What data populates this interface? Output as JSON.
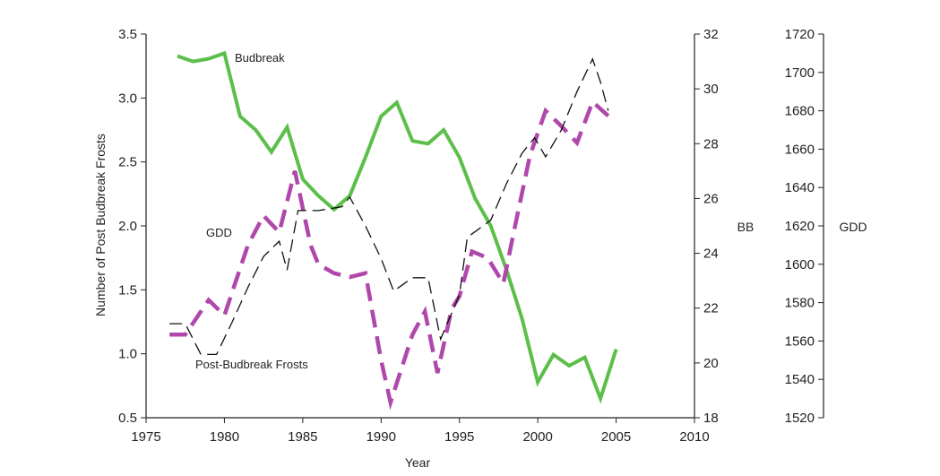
{
  "chart_data": {
    "type": "line",
    "xlabel": "Year",
    "xlim": [
      1975,
      2010
    ],
    "x_ticks": [
      1975,
      1980,
      1985,
      1990,
      1995,
      2000,
      2005,
      2010
    ],
    "axes": {
      "left": {
        "label": "Number of Post Budbreak Frosts",
        "lim": [
          0.5,
          3.5
        ],
        "ticks": [
          "0.5",
          "1.0",
          "1.5",
          "2.0",
          "2.5",
          "3.0",
          "3.5"
        ]
      },
      "right": {
        "label": "BB",
        "lim": [
          18,
          32
        ],
        "ticks": [
          "18",
          "20",
          "22",
          "24",
          "26",
          "28",
          "30",
          "32"
        ]
      },
      "far_right": {
        "label": "GDD",
        "lim": [
          1520,
          1720
        ],
        "ticks": [
          "1520",
          "1540",
          "1560",
          "1580",
          "1600",
          "1620",
          "1640",
          "1660",
          "1680",
          "1700",
          "1720"
        ]
      }
    },
    "annotations": {
      "budbreak": "Budbreak",
      "gdd": "GDD",
      "frosts": "Post-Budbreak Frosts"
    },
    "series": [
      {
        "name": "Budbreak",
        "axis": "right",
        "color": "#5cbf4a",
        "style": "solid",
        "points": [
          [
            1977,
            31.2
          ],
          [
            1978,
            31.0
          ],
          [
            1979,
            31.1
          ],
          [
            1980,
            31.3
          ],
          [
            1981,
            29.0
          ],
          [
            1982,
            28.5
          ],
          [
            1983,
            27.7
          ],
          [
            1984,
            28.6
          ],
          [
            1985,
            26.7
          ],
          [
            1986,
            26.1
          ],
          [
            1987,
            25.6
          ],
          [
            1988,
            26.1
          ],
          [
            1989,
            27.5
          ],
          [
            1990,
            29.0
          ],
          [
            1991,
            29.5
          ],
          [
            1992,
            28.1
          ],
          [
            1993,
            28.0
          ],
          [
            1994,
            28.5
          ],
          [
            1995,
            27.5
          ],
          [
            1996,
            26.0
          ],
          [
            1997,
            25.0
          ],
          [
            1998,
            23.4
          ],
          [
            1999,
            21.6
          ],
          [
            2000,
            19.3
          ],
          [
            2001,
            20.3
          ],
          [
            2002,
            19.9
          ],
          [
            2003,
            20.2
          ],
          [
            2004,
            18.7
          ],
          [
            2005,
            20.5
          ]
        ]
      },
      {
        "name": "GDD",
        "axis": "far_right",
        "color": "#111111",
        "style": "thin-dash",
        "points": [
          [
            1976.5,
            1569
          ],
          [
            1977.5,
            1569
          ],
          [
            1978.5,
            1553
          ],
          [
            1979.5,
            1553
          ],
          [
            1980.5,
            1570
          ],
          [
            1981.5,
            1588
          ],
          [
            1982.5,
            1604
          ],
          [
            1983.5,
            1612
          ],
          [
            1984,
            1597
          ],
          [
            1984.7,
            1628
          ],
          [
            1986,
            1628
          ],
          [
            1987.5,
            1630
          ],
          [
            1988,
            1635
          ],
          [
            1989,
            1620
          ],
          [
            1990,
            1603
          ],
          [
            1990.8,
            1586
          ],
          [
            1992,
            1593
          ],
          [
            1993,
            1593
          ],
          [
            1993.8,
            1561
          ],
          [
            1995,
            1584
          ],
          [
            1995.5,
            1614
          ],
          [
            1997,
            1623
          ],
          [
            1998,
            1642
          ],
          [
            1999,
            1658
          ],
          [
            1999.8,
            1666
          ],
          [
            2000.5,
            1656
          ],
          [
            2001.5,
            1670
          ],
          [
            2002.5,
            1690
          ],
          [
            2003.5,
            1707
          ],
          [
            2004,
            1695
          ],
          [
            2004.5,
            1680
          ]
        ]
      },
      {
        "name": "Post-Budbreak Frosts",
        "axis": "left",
        "color": "#b048ab",
        "style": "bold-dash",
        "points": [
          [
            1976.5,
            1.15
          ],
          [
            1977.5,
            1.15
          ],
          [
            1979,
            1.42
          ],
          [
            1980,
            1.3
          ],
          [
            1981.5,
            1.85
          ],
          [
            1982.5,
            2.08
          ],
          [
            1983.5,
            1.95
          ],
          [
            1984.5,
            2.43
          ],
          [
            1985.5,
            1.85
          ],
          [
            1986,
            1.7
          ],
          [
            1987,
            1.63
          ],
          [
            1988,
            1.6
          ],
          [
            1989,
            1.63
          ],
          [
            1990,
            0.95
          ],
          [
            1990.6,
            0.62
          ],
          [
            1992,
            1.15
          ],
          [
            1992.8,
            1.33
          ],
          [
            1993.6,
            0.85
          ],
          [
            1994.5,
            1.35
          ],
          [
            1995,
            1.45
          ],
          [
            1995.8,
            1.8
          ],
          [
            1996.8,
            1.75
          ],
          [
            1997.8,
            1.55
          ],
          [
            1998.5,
            1.97
          ],
          [
            1999.5,
            2.55
          ],
          [
            2000.5,
            2.9
          ],
          [
            2001.5,
            2.78
          ],
          [
            2002.5,
            2.65
          ],
          [
            2003.5,
            2.97
          ],
          [
            2004.5,
            2.86
          ]
        ]
      }
    ]
  }
}
